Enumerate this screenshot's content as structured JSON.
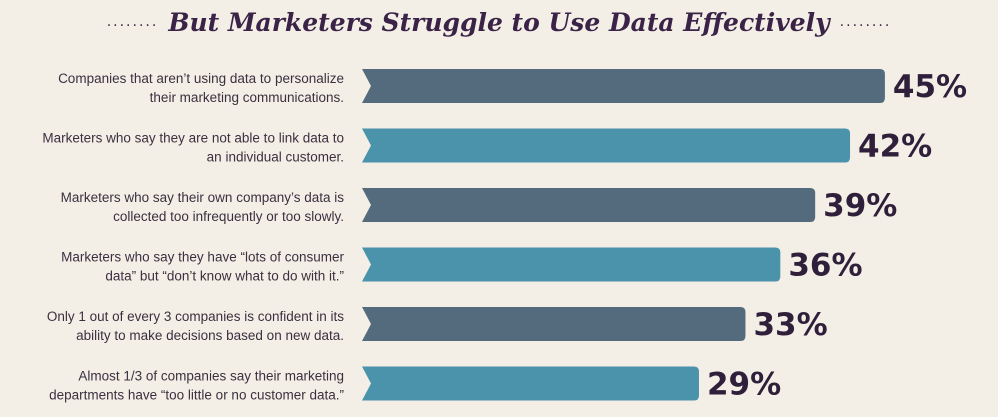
{
  "header": {
    "title": "But Marketers Struggle to Use Data Effectively",
    "dots_left": "........",
    "dots_right": "........"
  },
  "colors": {
    "dark_bar": "#536b7c",
    "light_bar": "#4b92ab",
    "value_text": "#2f1f3a",
    "background": "#f3efe6"
  },
  "chart_data": {
    "type": "bar",
    "orientation": "horizontal",
    "title": "But Marketers Struggle to Use Data Effectively",
    "categories": [
      [
        "Companies that aren’t using data to personalize",
        "their marketing communications."
      ],
      [
        "Marketers who say they are not able to link data to",
        "an individual customer."
      ],
      [
        "Marketers who say their own company’s data is",
        "collected too infrequently or too slowly."
      ],
      [
        "Marketers who say they have “lots of consumer",
        "data” but “don’t know what to do with it.”"
      ],
      [
        "Only 1 out of every 3 companies is confident in its",
        "ability to make decisions based on new data."
      ],
      [
        "Almost 1/3 of companies say their marketing",
        "departments have “too little or no customer data.”"
      ]
    ],
    "values": [
      45,
      42,
      39,
      36,
      33,
      29
    ],
    "value_labels": [
      "45%",
      "42%",
      "39%",
      "36%",
      "33%",
      "29%"
    ],
    "unit": "%",
    "xlim": [
      0,
      45
    ],
    "grid": false,
    "legend": "none"
  }
}
